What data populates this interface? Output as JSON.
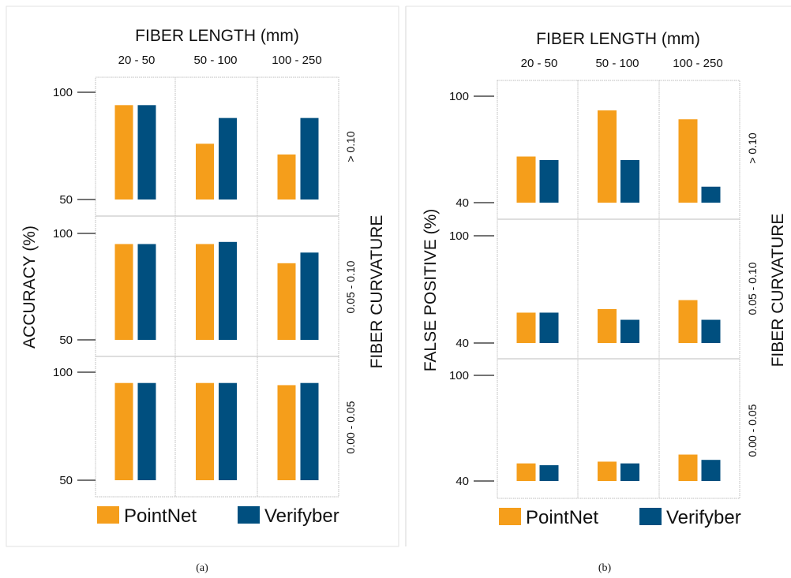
{
  "colors": {
    "pointnet": "#F59E1B",
    "verifyber": "#004F7F",
    "grid": "#bdbdbd",
    "axis": "#222222"
  },
  "legend": {
    "pointnet": "PointNet",
    "verifyber": "Verifyber"
  },
  "chart_data": [
    {
      "type": "bar",
      "panel": "(a)",
      "col_title": "FIBER LENGTH (mm)",
      "ylabel": "ACCURACY (%)",
      "row_title": "FIBER CURVATURE",
      "columns": [
        "20 - 50",
        "50 - 100",
        "100 - 250"
      ],
      "rows": [
        "> 0.10",
        "0.05 - 0.10",
        "0.00 - 0.05"
      ],
      "ylim": [
        50,
        100
      ],
      "yticks": [
        "100",
        "50"
      ],
      "series": [
        {
          "name": "PointNet",
          "values": [
            [
              94,
              76,
              71
            ],
            [
              95,
              95,
              86
            ],
            [
              95,
              95,
              94
            ]
          ]
        },
        {
          "name": "Verifyber",
          "values": [
            [
              94,
              88,
              88
            ],
            [
              95,
              96,
              91
            ],
            [
              95,
              95,
              95
            ]
          ]
        }
      ]
    },
    {
      "type": "bar",
      "panel": "(b)",
      "col_title": "FIBER LENGTH (mm)",
      "ylabel": "FALSE POSITIVE (%)",
      "row_title": "FIBER CURVATURE",
      "columns": [
        "20 - 50",
        "50 - 100",
        "100 - 250"
      ],
      "rows": [
        "> 0.10",
        "0.05 - 0.10",
        "0.00 - 0.05"
      ],
      "ylim": [
        40,
        100
      ],
      "yticks": [
        "100",
        "40"
      ],
      "series": [
        {
          "name": "PointNet",
          "values": [
            [
              66,
              92,
              87
            ],
            [
              57,
              59,
              64
            ],
            [
              50,
              51,
              55
            ]
          ]
        },
        {
          "name": "Verifyber",
          "values": [
            [
              64,
              64,
              49
            ],
            [
              57,
              53,
              53
            ],
            [
              49,
              50,
              52
            ]
          ]
        }
      ]
    }
  ]
}
